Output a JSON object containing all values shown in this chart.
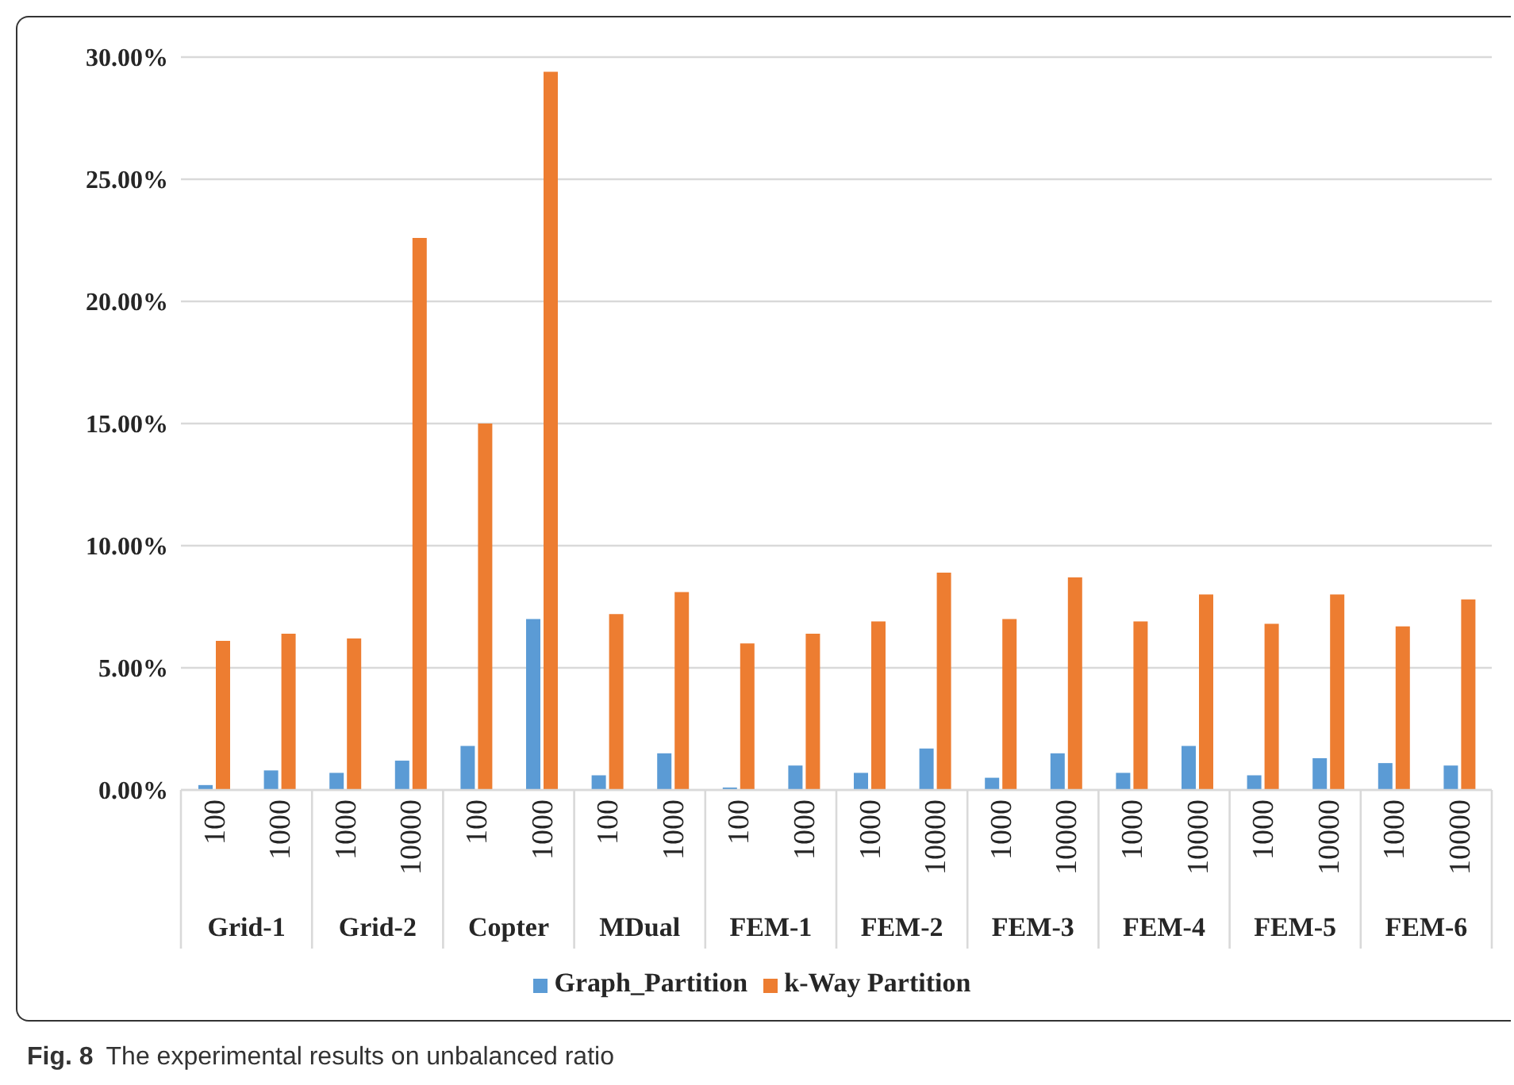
{
  "chart_data": {
    "type": "bar",
    "title": "Fig. 8",
    "subtitle": "The experimental results on unbalanced ratio",
    "categories": [
      "100",
      "1000",
      "1000",
      "10000",
      "100",
      "1000",
      "100",
      "1000",
      "100",
      "1000",
      "1000",
      "10000",
      "1000",
      "10000",
      "1000",
      "10000",
      "1000",
      "10000",
      "1000",
      "10000"
    ],
    "annotations": [
      "Grid-1",
      "Grid-2",
      "Copter",
      "MDual",
      "FEM-1",
      "FEM-2",
      "FEM-3",
      "FEM-4",
      "FEM-5",
      "FEM-6"
    ],
    "series": [
      {
        "name": "Graph_Partition",
        "color": "#5b9bd5",
        "values": [
          0.2,
          0.8,
          0.7,
          1.2,
          1.8,
          7.0,
          0.6,
          1.5,
          0.1,
          1.0,
          0.7,
          1.7,
          0.5,
          1.5,
          0.7,
          1.8,
          0.6,
          1.3,
          1.1,
          1.0
        ]
      },
      {
        "name": "k-Way Partition",
        "color": "#ed7d31",
        "values": [
          6.1,
          6.4,
          6.2,
          22.6,
          15.0,
          29.4,
          7.2,
          8.1,
          6.0,
          6.4,
          6.9,
          8.9,
          7.0,
          8.7,
          6.9,
          8.0,
          6.8,
          8.0,
          6.7,
          7.8
        ]
      }
    ],
    "ylim": [
      0,
      30
    ],
    "yticks": [
      {
        "value": 0,
        "label": "0.00%"
      },
      {
        "value": 5,
        "label": "5.00%"
      },
      {
        "value": 10,
        "label": "10.00%"
      },
      {
        "value": 15,
        "label": "15.00%"
      },
      {
        "value": 20,
        "label": "20.00%"
      },
      {
        "value": 25,
        "label": "25.00%"
      },
      {
        "value": 30,
        "label": "30.00%"
      }
    ],
    "grid": "y",
    "legend": "bottom"
  }
}
